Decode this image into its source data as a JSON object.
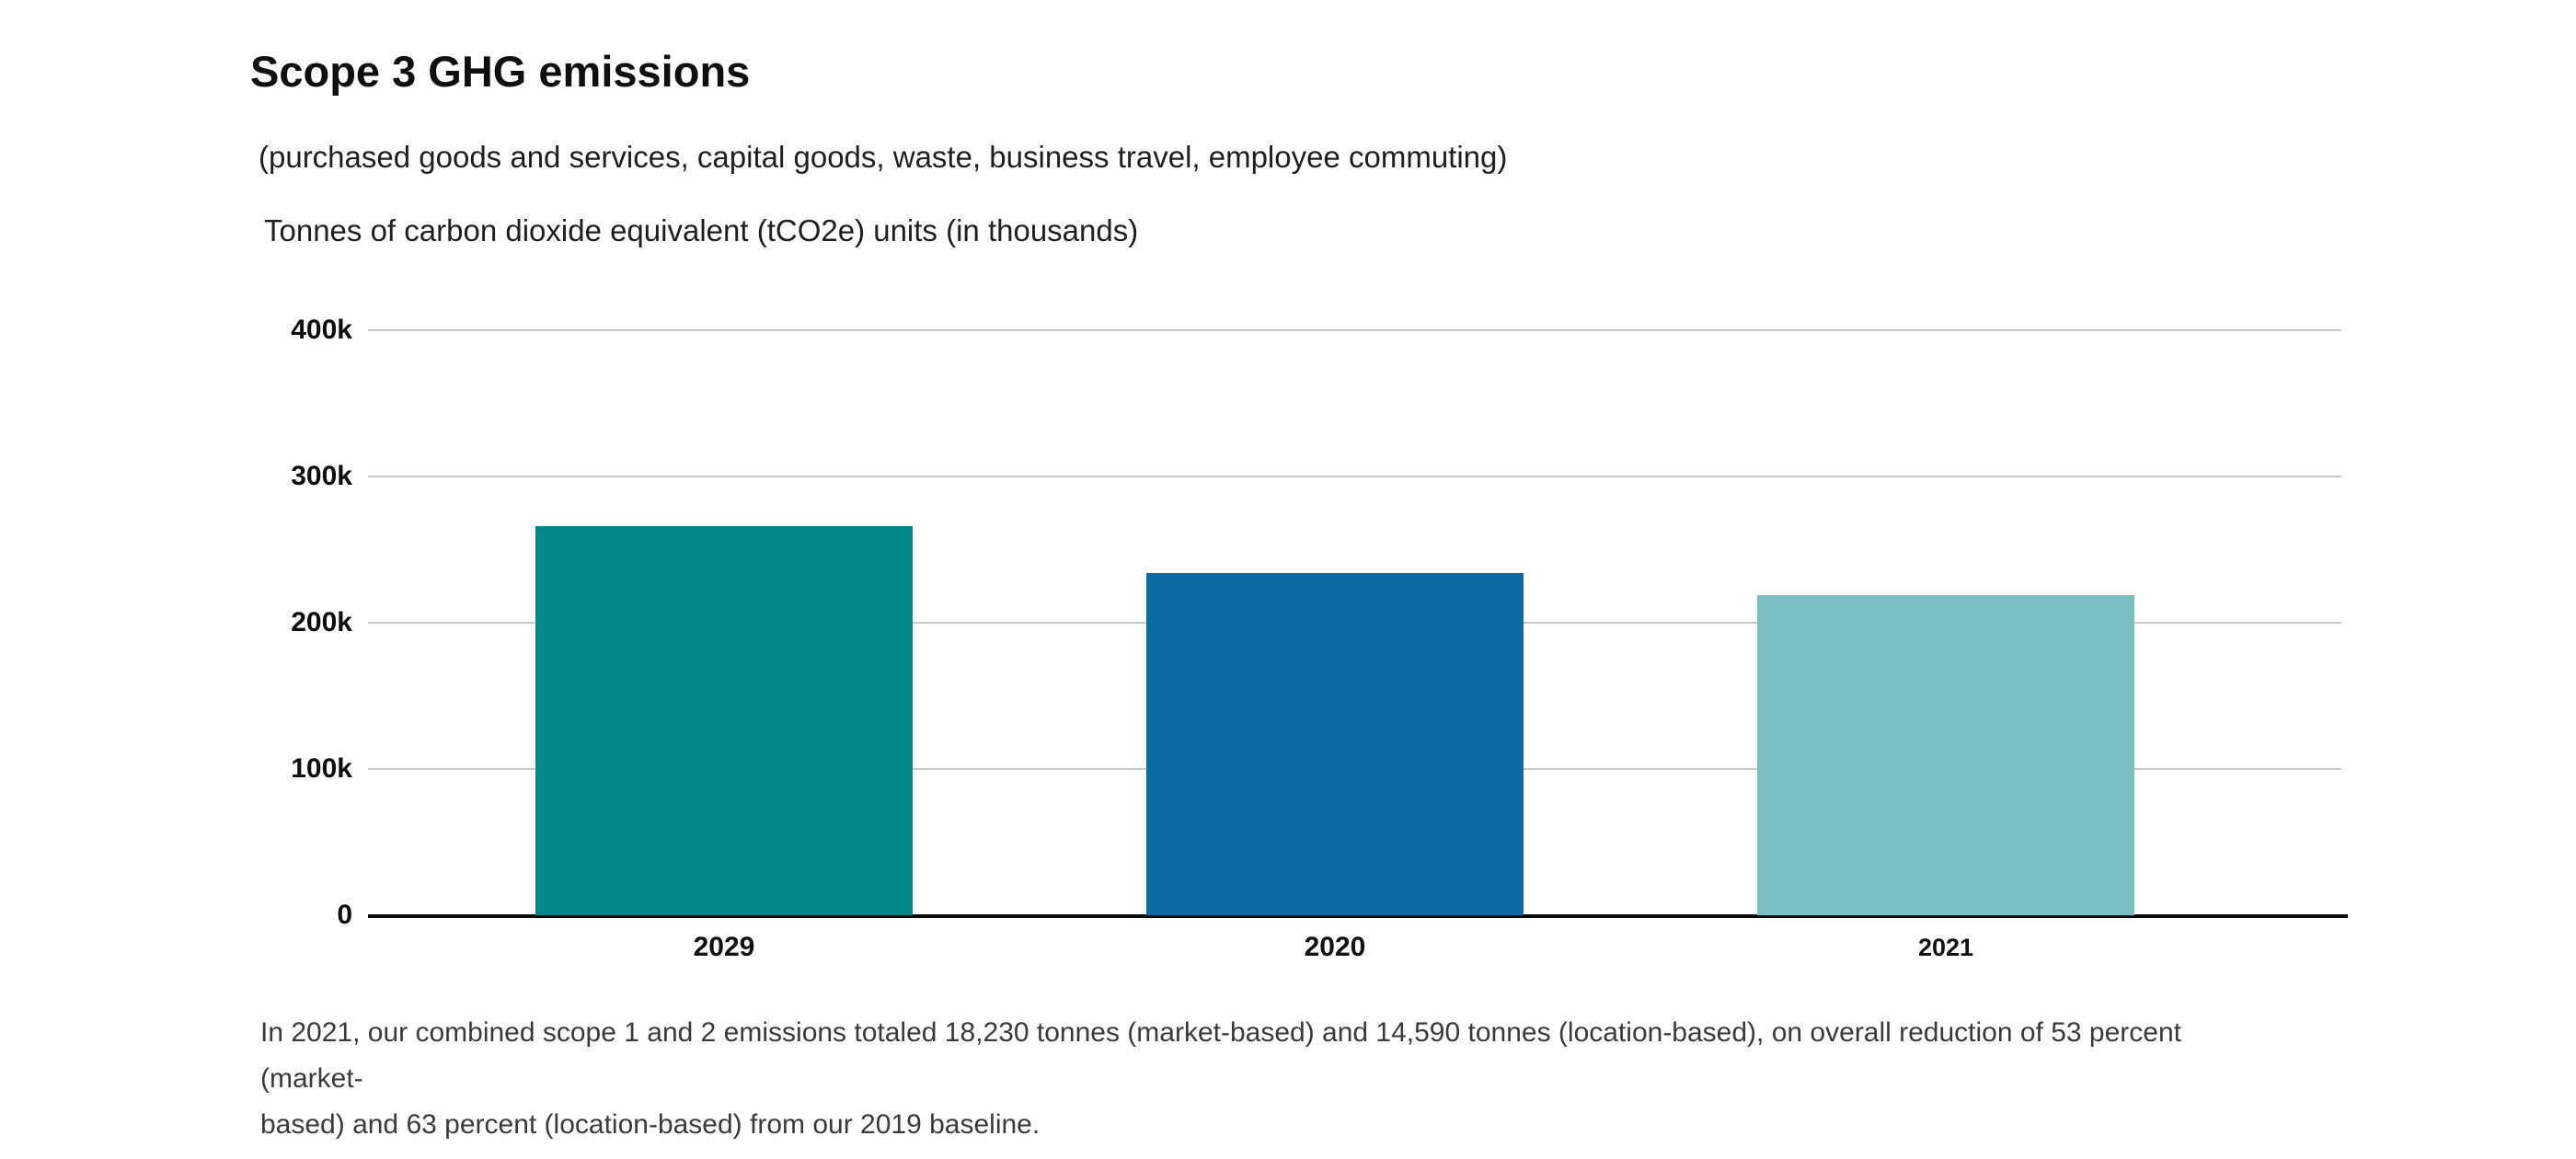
{
  "header": {
    "title": "Scope 3 GHG emissions",
    "subtitle": "(purchased goods and services, capital goods, waste, business travel, employee commuting)",
    "units_note": "Tonnes of carbon dioxide equivalent (tCO2e) units (in thousands)"
  },
  "chart_data": {
    "type": "bar",
    "title": "Scope 3 GHG emissions",
    "categories": [
      "2029",
      "2020",
      "2021"
    ],
    "values": [
      266000,
      234000,
      219000
    ],
    "values_in_thousands": [
      266,
      234,
      219
    ],
    "unit": "tCO2e",
    "ylabel": "Tonnes of carbon dioxide equivalent (tCO2e) units (in thousands)",
    "ylim": [
      0,
      400000
    ],
    "yticks": [
      {
        "label": "400k",
        "value": 400000
      },
      {
        "label": "300k",
        "value": 300000
      },
      {
        "label": "200k",
        "value": 200000
      },
      {
        "label": "100k",
        "value": 100000
      },
      {
        "label": "0",
        "value": 0
      }
    ],
    "bar_colors": [
      "#038788",
      "#0a6ca3",
      "#7abfc1"
    ],
    "gridline_color": "#c9c9c9",
    "axis_color": "#0a0a0a",
    "grid": true,
    "legend": false
  },
  "footnote": {
    "lines": [
      "In 2021, our combined scope 1 and 2 emissions totaled 18,230 tonnes (market-based) and 14,590 tonnes (location-based), on overall reduction of 53 percent (market-",
      "based) and 63 percent (location-based) from our 2019 baseline."
    ]
  }
}
